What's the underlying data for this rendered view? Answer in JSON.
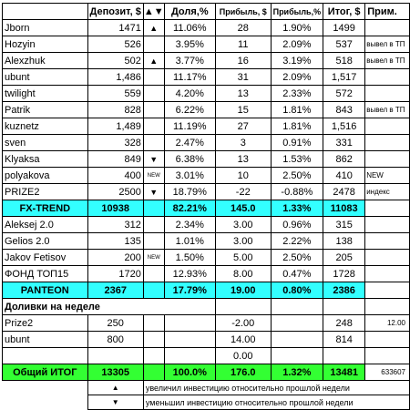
{
  "headers": {
    "deposit": "Депозит, $",
    "arrows": "▲▼",
    "share": "Доля,%",
    "profit": "Прибыль, $",
    "profit_pct": "Прибыль,%",
    "total": "Итог, $",
    "note": "Прим."
  },
  "group1": [
    {
      "name": "Jborn",
      "deposit": "1471",
      "arrow": "▲",
      "share": "11.06%",
      "profit": "28",
      "profit_pct": "1.90%",
      "total": "1499",
      "note": ""
    },
    {
      "name": "Hozyin",
      "deposit": "526",
      "arrow": "",
      "share": "3.95%",
      "profit": "11",
      "profit_pct": "2.09%",
      "total": "537",
      "note": "вывел в ТП"
    },
    {
      "name": "Alexzhuk",
      "deposit": "502",
      "arrow": "▲",
      "share": "3.77%",
      "profit": "16",
      "profit_pct": "3.19%",
      "total": "518",
      "note": "вывел в ТП"
    },
    {
      "name": "ubunt",
      "deposit": "1,486",
      "arrow": "",
      "share": "11.17%",
      "profit": "31",
      "profit_pct": "2.09%",
      "total": "1,517",
      "note": ""
    },
    {
      "name": "twilight",
      "deposit": "559",
      "arrow": "",
      "share": "4.20%",
      "profit": "13",
      "profit_pct": "2.33%",
      "total": "572",
      "note": ""
    },
    {
      "name": "Patrik",
      "deposit": "828",
      "arrow": "",
      "share": "6.22%",
      "profit": "15",
      "profit_pct": "1.81%",
      "total": "843",
      "note": "вывел в ТП"
    },
    {
      "name": "kuznetz",
      "deposit": "1,489",
      "arrow": "",
      "share": "11.19%",
      "profit": "27",
      "profit_pct": "1.81%",
      "total": "1,516",
      "note": ""
    },
    {
      "name": "sven",
      "deposit": "328",
      "arrow": "",
      "share": "2.47%",
      "profit": "3",
      "profit_pct": "0.91%",
      "total": "331",
      "note": ""
    },
    {
      "name": "Klyaksa",
      "deposit": "849",
      "arrow": "▼",
      "share": "6.38%",
      "profit": "13",
      "profit_pct": "1.53%",
      "total": "862",
      "note": ""
    },
    {
      "name": "polyakova",
      "deposit": "400",
      "arrow": "NEW",
      "share": "3.01%",
      "profit": "10",
      "profit_pct": "2.50%",
      "total": "410",
      "note": "NEW"
    },
    {
      "name": "PRIZE2",
      "deposit": "2500",
      "arrow": "▼",
      "share": "18.79%",
      "profit": "-22",
      "profit_pct": "-0.88%",
      "total": "2478",
      "note": "индекс"
    }
  ],
  "total1": {
    "name": "FX-TREND",
    "deposit": "10938",
    "share": "82.21%",
    "profit": "145.0",
    "profit_pct": "1.33%",
    "total": "11083"
  },
  "group2": [
    {
      "name": "Aleksej 2.0",
      "deposit": "312",
      "arrow": "",
      "share": "2.34%",
      "profit": "3.00",
      "profit_pct": "0.96%",
      "total": "315"
    },
    {
      "name": "Gelios 2.0",
      "deposit": "135",
      "arrow": "",
      "share": "1.01%",
      "profit": "3.00",
      "profit_pct": "2.22%",
      "total": "138"
    },
    {
      "name": "Jakov Fetisov",
      "deposit": "200",
      "arrow": "NEW",
      "share": "1.50%",
      "profit": "5.00",
      "profit_pct": "2.50%",
      "total": "205"
    },
    {
      "name": "ФОНД ТОП15",
      "deposit": "1720",
      "arrow": "",
      "share": "12.93%",
      "profit": "8.00",
      "profit_pct": "0.47%",
      "total": "1728"
    }
  ],
  "total2": {
    "name": "PANTEON",
    "deposit": "2367",
    "share": "17.79%",
    "profit": "19.00",
    "profit_pct": "0.80%",
    "total": "2386"
  },
  "section3": {
    "title": "Доливки на неделе"
  },
  "group3": [
    {
      "name": "Prize2",
      "deposit": "250",
      "profit": "-2.00",
      "total": "248",
      "note": "12.00"
    },
    {
      "name": "ubunt",
      "deposit": "800",
      "profit": "14.00",
      "total": "814",
      "note": ""
    },
    {
      "name": "",
      "deposit": "",
      "profit": "0.00",
      "total": "",
      "note": ""
    }
  ],
  "grand": {
    "name": "Общий ИТОГ",
    "deposit": "13305",
    "share": "100.0%",
    "profit": "176.0",
    "profit_pct": "1.32%",
    "total": "13481",
    "note": "633607"
  },
  "legend": [
    {
      "symbol": "▲",
      "text": "увеличил инвестицию относительно прошлой недели"
    },
    {
      "symbol": "▼",
      "text": "уменьшил инвестицию относительно прошлой недели"
    }
  ],
  "colors": {
    "total_fill": "#33ffff",
    "grand_fill": "#33ff33"
  }
}
